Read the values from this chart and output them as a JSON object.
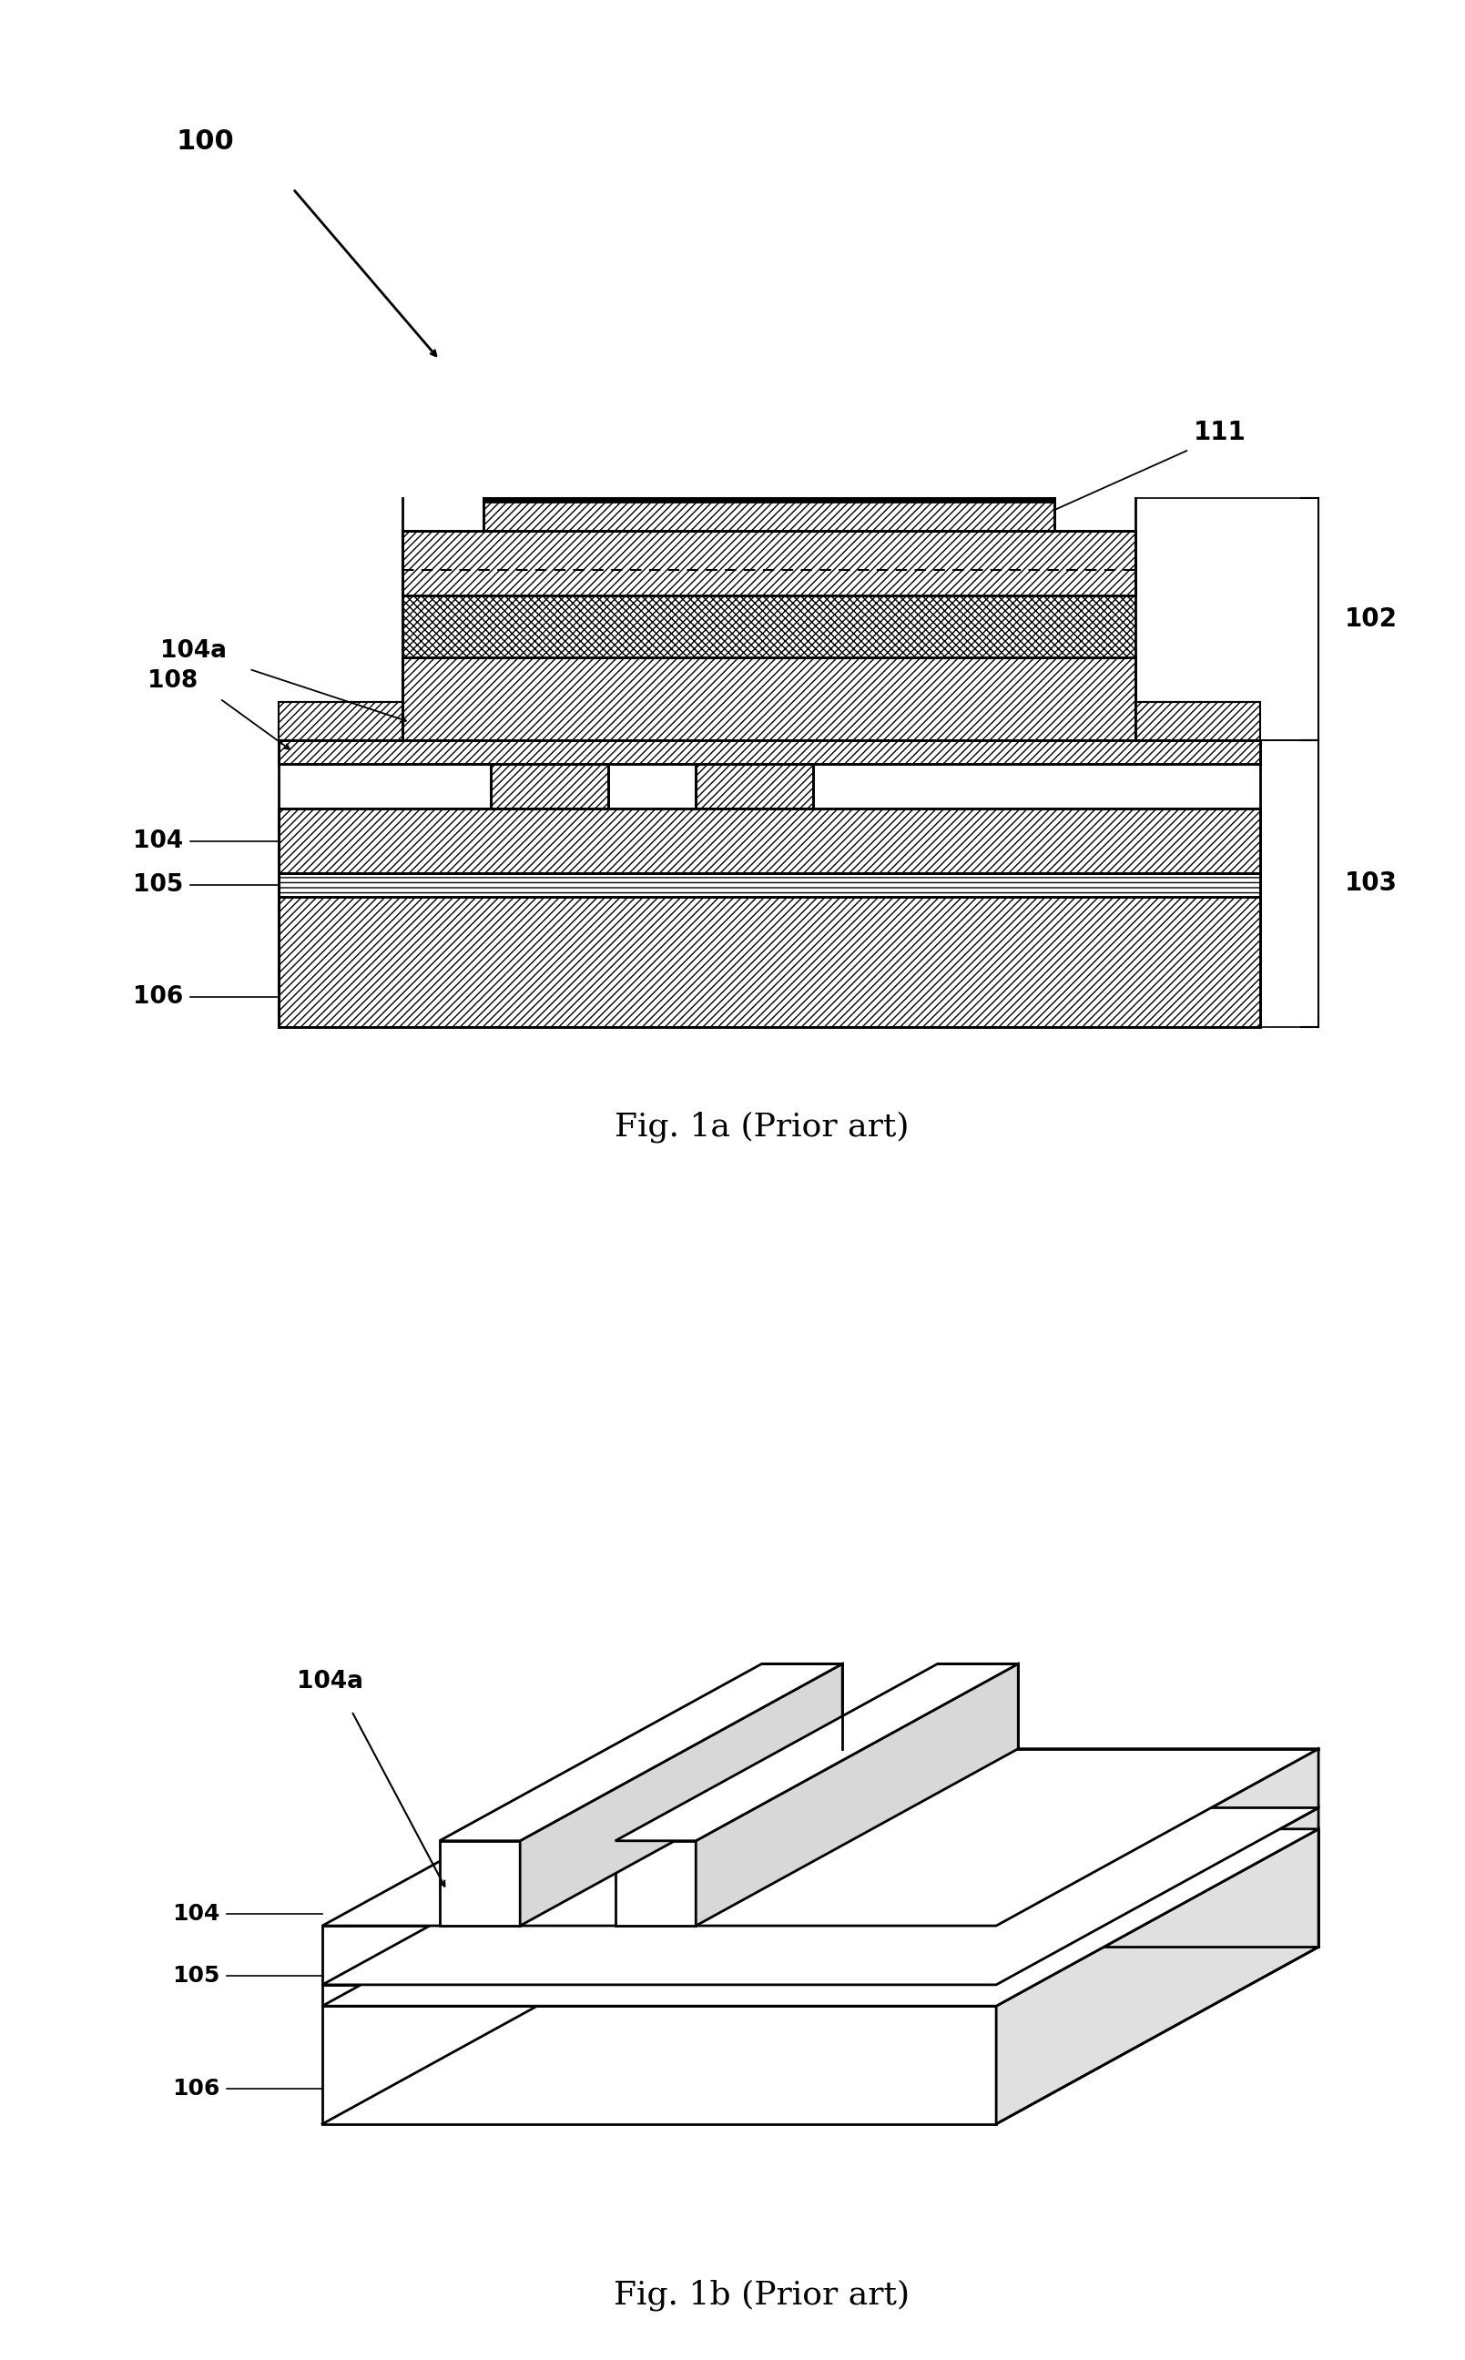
{
  "fig_width": 16.09,
  "fig_height": 25.92,
  "bg": "#ffffff",
  "fig1a_title": "Fig. 1a (Prior art)",
  "fig1b_title": "Fig. 1b (Prior art)",
  "lw_main": 2.0,
  "lw_thin": 1.2,
  "fs_label": 20,
  "fs_title": 26
}
